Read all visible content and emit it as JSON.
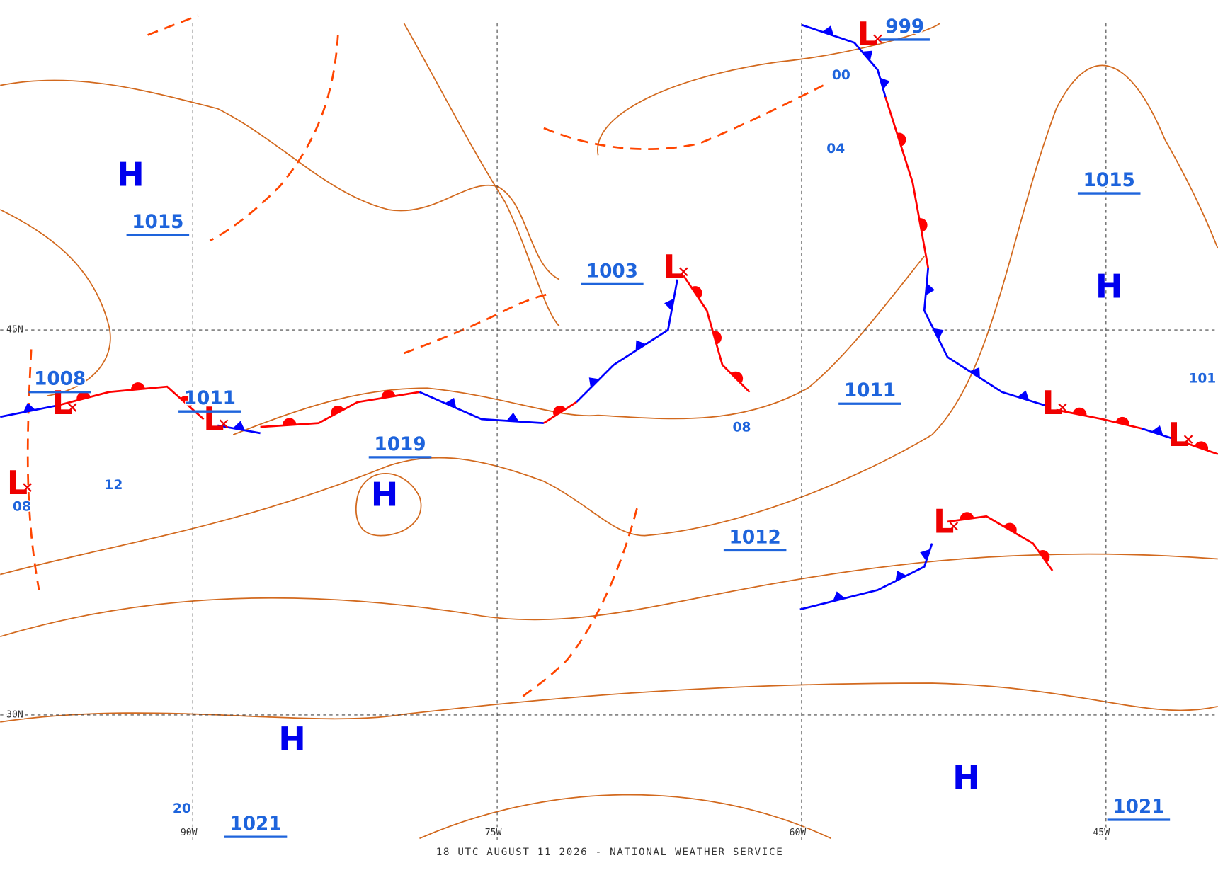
{
  "footer": "18 UTC AUGUST 11 2026 - NATIONAL WEATHER SERVICE",
  "grid_labels": [
    "45N",
    "30N",
    "90W",
    "75W",
    "60W",
    "45W"
  ],
  "highs": [
    "H",
    "H",
    "H",
    "H",
    "H"
  ],
  "lows": [
    "L",
    "L",
    "L",
    "L",
    "L",
    "L",
    "L",
    "L"
  ],
  "isobar_labels": [
    "1015",
    "1008",
    "1011",
    "1019",
    "1003",
    "1011",
    "1015",
    "1012",
    "1021",
    "1021",
    "999",
    "00",
    "04",
    "08",
    "12",
    "08",
    "20",
    "101"
  ]
}
